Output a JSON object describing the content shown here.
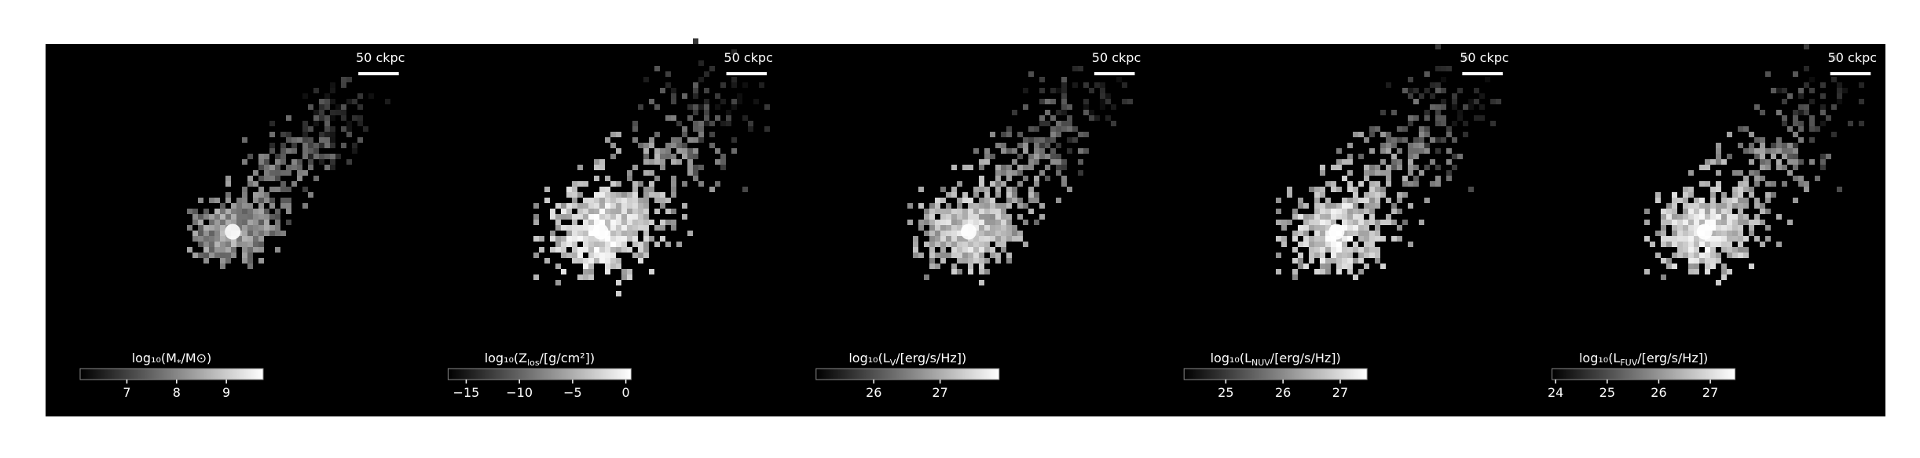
{
  "panels": [
    {
      "scale_bar": "50 ckpc",
      "colorbar": {
        "label": {
          "pre": "log₁₀(M",
          "sub": "*",
          "post": "/M⊙)"
        },
        "lim": [
          6.06,
          9.74
        ],
        "ticks": [
          7,
          8,
          9
        ]
      }
    },
    {
      "scale_bar": "50 ckpc",
      "colorbar": {
        "label": {
          "pre": "log₁₀(Z",
          "sub": "los",
          "post": "/[g/cm²])"
        },
        "lim": [
          -16.7,
          0.5
        ],
        "ticks": [
          {
            "value": -15,
            "label": "−15"
          },
          {
            "value": -10,
            "label": "−10"
          },
          {
            "value": -5,
            "label": "−5"
          },
          0
        ]
      }
    },
    {
      "scale_bar": "50 ckpc",
      "colorbar": {
        "label": {
          "pre": "log₁₀(L",
          "sub": "V",
          "post": "/[erg/s/Hz])"
        },
        "lim": [
          25.13,
          27.89
        ],
        "ticks": [
          26,
          27
        ]
      }
    },
    {
      "scale_bar": "50 ckpc",
      "colorbar": {
        "label": {
          "pre": "log₁₀(L",
          "sub": "NUV",
          "post": "/[erg/s/Hz])"
        },
        "lim": [
          24.27,
          27.47
        ],
        "ticks": [
          25,
          26,
          27
        ]
      }
    },
    {
      "scale_bar": "50 ckpc",
      "colorbar": {
        "label": {
          "pre": "log₁₀(L",
          "sub": "FUV",
          "post": "/[erg/s/Hz])"
        },
        "lim": [
          23.93,
          27.48
        ],
        "ticks": [
          24,
          25,
          26,
          27
        ]
      }
    }
  ]
}
